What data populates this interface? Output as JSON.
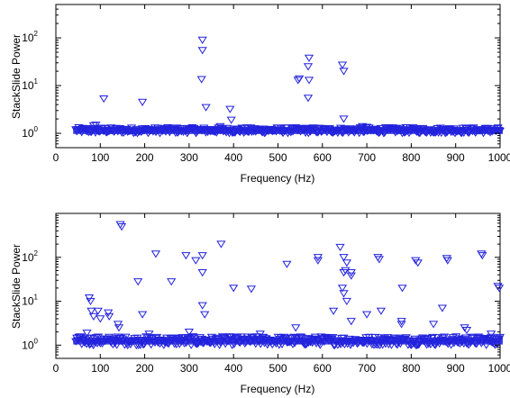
{
  "chart_data": [
    {
      "type": "scatter",
      "xlabel": "Frequency (Hz)",
      "ylabel": "StackSlide Power",
      "xlim": [
        0,
        1000
      ],
      "ylim": [
        0.5,
        500
      ],
      "yscale": "log",
      "grid": false,
      "x_ticks": [
        "0",
        "100",
        "200",
        "300",
        "400",
        "500",
        "600",
        "700",
        "800",
        "900",
        "1000"
      ],
      "y_ticks": [
        {
          "base": "10",
          "exp": "0",
          "value": 1
        },
        {
          "base": "10",
          "exp": "1",
          "value": 10
        },
        {
          "base": "10",
          "exp": "2",
          "value": 100
        }
      ],
      "marker": "triangle-down",
      "color": "#2222dd",
      "baseline": {
        "x_range": [
          45,
          1000
        ],
        "y_center": 1.15,
        "spread": 0.12
      },
      "points": [
        [
          108,
          5.3
        ],
        [
          195,
          4.5
        ],
        [
          330,
          90
        ],
        [
          330,
          55
        ],
        [
          328,
          13.5
        ],
        [
          338,
          3.5
        ],
        [
          392,
          3.2
        ],
        [
          395,
          1.9
        ],
        [
          548,
          14
        ],
        [
          545,
          13
        ],
        [
          570,
          38
        ],
        [
          568,
          25
        ],
        [
          570,
          13
        ],
        [
          568,
          5.5
        ],
        [
          645,
          27
        ],
        [
          648,
          20
        ],
        [
          648,
          2.0
        ],
        [
          690,
          1.4
        ],
        [
          700,
          1.35
        ],
        [
          85,
          1.45
        ],
        [
          90,
          1.5
        ],
        [
          370,
          1.4
        ]
      ]
    },
    {
      "type": "scatter",
      "xlabel": "Frequency (Hz)",
      "ylabel": "StackSlide Power",
      "xlim": [
        0,
        1000
      ],
      "ylim": [
        0.5,
        1000
      ],
      "yscale": "log",
      "grid": false,
      "x_ticks": [
        "0",
        "100",
        "200",
        "300",
        "400",
        "500",
        "600",
        "700",
        "800",
        "900",
        "1000"
      ],
      "y_ticks": [
        {
          "base": "10",
          "exp": "0",
          "value": 1
        },
        {
          "base": "10",
          "exp": "1",
          "value": 10
        },
        {
          "base": "10",
          "exp": "2",
          "value": 100
        }
      ],
      "marker": "triangle-down",
      "color": "#2222dd",
      "baseline": {
        "x_range": [
          45,
          1000
        ],
        "y_center": 1.25,
        "spread": 0.2
      },
      "points": [
        [
          145,
          560
        ],
        [
          148,
          500
        ],
        [
          225,
          120
        ],
        [
          293,
          110
        ],
        [
          330,
          110
        ],
        [
          372,
          200
        ],
        [
          185,
          28
        ],
        [
          260,
          28
        ],
        [
          315,
          85
        ],
        [
          330,
          45
        ],
        [
          400,
          20
        ],
        [
          440,
          19
        ],
        [
          520,
          70
        ],
        [
          590,
          100
        ],
        [
          590,
          85
        ],
        [
          640,
          170
        ],
        [
          648,
          100
        ],
        [
          655,
          75
        ],
        [
          652,
          50
        ],
        [
          648,
          45
        ],
        [
          665,
          45
        ],
        [
          665,
          38
        ],
        [
          645,
          20
        ],
        [
          648,
          15
        ],
        [
          655,
          10
        ],
        [
          725,
          100
        ],
        [
          728,
          90
        ],
        [
          780,
          20
        ],
        [
          810,
          85
        ],
        [
          815,
          75
        ],
        [
          880,
          95
        ],
        [
          882,
          85
        ],
        [
          870,
          7
        ],
        [
          958,
          120
        ],
        [
          960,
          110
        ],
        [
          995,
          22
        ],
        [
          998,
          20
        ],
        [
          75,
          12
        ],
        [
          78,
          10
        ],
        [
          80,
          6
        ],
        [
          85,
          4.5
        ],
        [
          95,
          6
        ],
        [
          100,
          4
        ],
        [
          118,
          5.5
        ],
        [
          120,
          4.5
        ],
        [
          195,
          5
        ],
        [
          330,
          8
        ],
        [
          335,
          5
        ],
        [
          625,
          6
        ],
        [
          665,
          3.5
        ],
        [
          700,
          5
        ],
        [
          732,
          6
        ],
        [
          778,
          3.5
        ],
        [
          778,
          3
        ],
        [
          850,
          3
        ],
        [
          920,
          2.5
        ],
        [
          925,
          2.2
        ],
        [
          540,
          2.5
        ],
        [
          70,
          1.9
        ],
        [
          140,
          3
        ],
        [
          142,
          2.5
        ],
        [
          300,
          2.0
        ],
        [
          460,
          1.8
        ],
        [
          210,
          1.8
        ],
        [
          980,
          1.8
        ]
      ]
    }
  ]
}
